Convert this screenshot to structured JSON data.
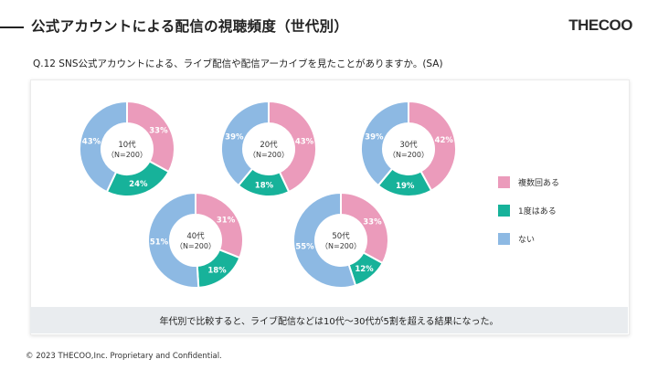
{
  "header": {
    "title": "公式アカウントによる配信の視聴頻度（世代別）",
    "logo": "THECOO"
  },
  "question": "Q.12 SNS公式アカウントによる、ライブ配信や配信アーカイブを見たことがありますか。(SA)",
  "summary": "年代別で比較すると、ライブ配信などは10代〜30代が5割を超える結果になった。",
  "footer": "© 2023 THECOO,Inc. Proprietary and Confidential.",
  "colors": {
    "multiple": "#eb9bbb",
    "once": "#17b29a",
    "never": "#8db9e3",
    "summary_bg": "#e9ecef"
  },
  "chart_data": {
    "type": "pie",
    "style": "donut",
    "series_names": [
      "複数回ある",
      "1度はある",
      "ない"
    ],
    "legend": [
      {
        "label": "複数回ある",
        "color": "#eb9bbb"
      },
      {
        "label": "1度はある",
        "color": "#17b29a"
      },
      {
        "label": "ない",
        "color": "#8db9e3"
      }
    ],
    "groups": [
      {
        "label": "10代",
        "n_label": "（N=200）",
        "values": [
          33,
          24,
          43
        ],
        "value_labels": [
          "33%",
          "24%",
          "43%"
        ]
      },
      {
        "label": "20代",
        "n_label": "（N=200）",
        "values": [
          43,
          18,
          39
        ],
        "value_labels": [
          "43%",
          "18%",
          "39%"
        ]
      },
      {
        "label": "30代",
        "n_label": "（N=200）",
        "values": [
          42,
          19,
          39
        ],
        "value_labels": [
          "42%",
          "19%",
          "39%"
        ]
      },
      {
        "label": "40代",
        "n_label": "（N=200）",
        "values": [
          31,
          18,
          51
        ],
        "value_labels": [
          "31%",
          "18%",
          "51%"
        ]
      },
      {
        "label": "50代",
        "n_label": "（N=200）",
        "values": [
          33,
          12,
          55
        ],
        "value_labels": [
          "33%",
          "12%",
          "55%"
        ]
      }
    ]
  }
}
